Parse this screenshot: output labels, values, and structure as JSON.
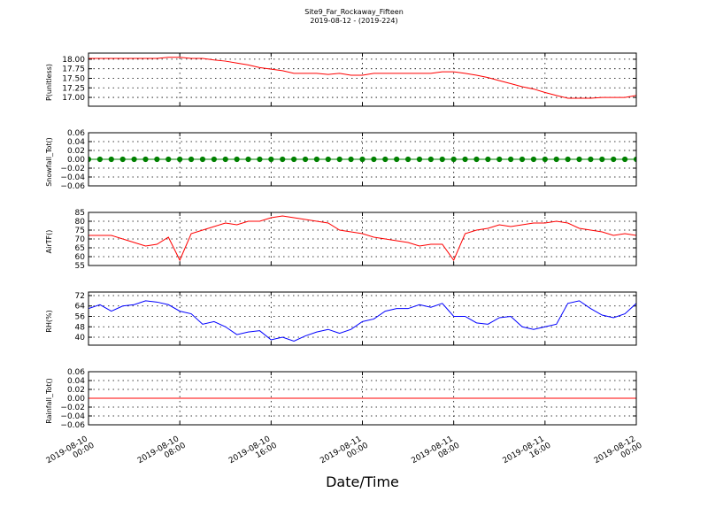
{
  "figure": {
    "title": "Site9_Far_Rockaway_Fifteen",
    "subtitle": "2019-08-12 - (2019-224)"
  },
  "chart_data": [
    {
      "type": "line",
      "ylabel": "P(unitless)",
      "color": "#ff0000",
      "marker": false,
      "grid": true,
      "xtick_labels": false,
      "xlim": [
        "2019-08-10 00:00",
        "2019-08-12 00:00"
      ],
      "xticks": [
        "2019-08-10 00:00",
        "2019-08-10 08:00",
        "2019-08-10 16:00",
        "2019-08-11 00:00",
        "2019-08-11 08:00",
        "2019-08-11 16:00",
        "2019-08-12 00:00"
      ],
      "ylim": [
        16.77,
        18.16
      ],
      "yticks": [
        {
          "value": 17,
          "label": "17.00"
        },
        {
          "value": 17.25,
          "label": "17.25"
        },
        {
          "value": 17.5,
          "label": "17.50"
        },
        {
          "value": 17.75,
          "label": "17.75"
        },
        {
          "value": 18,
          "label": "18.00"
        }
      ],
      "x": [
        "2019-08-10 00:00",
        "2019-08-10 01:00",
        "2019-08-10 02:00",
        "2019-08-10 03:00",
        "2019-08-10 04:00",
        "2019-08-10 05:00",
        "2019-08-10 06:00",
        "2019-08-10 07:00",
        "2019-08-10 08:00",
        "2019-08-10 09:00",
        "2019-08-10 10:00",
        "2019-08-10 11:00",
        "2019-08-10 12:00",
        "2019-08-10 13:00",
        "2019-08-10 14:00",
        "2019-08-10 15:00",
        "2019-08-10 16:00",
        "2019-08-10 17:00",
        "2019-08-10 18:00",
        "2019-08-10 19:00",
        "2019-08-10 20:00",
        "2019-08-10 21:00",
        "2019-08-10 22:00",
        "2019-08-10 23:00",
        "2019-08-11 00:00",
        "2019-08-11 01:00",
        "2019-08-11 02:00",
        "2019-08-11 03:00",
        "2019-08-11 04:00",
        "2019-08-11 05:00",
        "2019-08-11 06:00",
        "2019-08-11 07:00",
        "2019-08-11 08:00",
        "2019-08-11 09:00",
        "2019-08-11 10:00",
        "2019-08-11 11:00",
        "2019-08-11 12:00",
        "2019-08-11 13:00",
        "2019-08-11 14:00",
        "2019-08-11 15:00",
        "2019-08-11 16:00",
        "2019-08-11 17:00",
        "2019-08-11 18:00",
        "2019-08-11 19:00",
        "2019-08-11 20:00",
        "2019-08-11 21:00",
        "2019-08-11 22:00",
        "2019-08-11 23:00",
        "2019-08-12 00:00"
      ],
      "values": [
        18.02,
        18.02,
        18.02,
        18.02,
        18.02,
        18.02,
        18.02,
        18.05,
        18.05,
        18.02,
        18.02,
        17.98,
        17.95,
        17.9,
        17.85,
        17.78,
        17.74,
        17.7,
        17.63,
        17.63,
        17.63,
        17.6,
        17.63,
        17.58,
        17.58,
        17.63,
        17.63,
        17.63,
        17.63,
        17.63,
        17.63,
        17.67,
        17.67,
        17.63,
        17.58,
        17.52,
        17.44,
        17.36,
        17.28,
        17.22,
        17.13,
        17.05,
        16.98,
        16.98,
        16.98,
        17.0,
        17.0,
        17.0,
        17.05
      ]
    },
    {
      "type": "line",
      "ylabel": "Snowfall_Tot()",
      "color": "#008000",
      "marker": true,
      "grid": true,
      "xtick_labels": false,
      "xlim": [
        "2019-08-10 00:00",
        "2019-08-12 00:00"
      ],
      "xticks": [
        "2019-08-10 00:00",
        "2019-08-10 08:00",
        "2019-08-10 16:00",
        "2019-08-11 00:00",
        "2019-08-11 08:00",
        "2019-08-11 16:00",
        "2019-08-12 00:00"
      ],
      "ylim": [
        -0.06,
        0.06
      ],
      "yticks": [
        {
          "value": -0.06,
          "label": "−0.06"
        },
        {
          "value": -0.04,
          "label": "−0.04"
        },
        {
          "value": -0.02,
          "label": "−0.02"
        },
        {
          "value": 0,
          "label": "0.00"
        },
        {
          "value": 0.02,
          "label": "0.02"
        },
        {
          "value": 0.04,
          "label": "0.04"
        },
        {
          "value": 0.06,
          "label": "0.06"
        }
      ],
      "x": [
        "2019-08-10 00:00",
        "2019-08-10 01:00",
        "2019-08-10 02:00",
        "2019-08-10 03:00",
        "2019-08-10 04:00",
        "2019-08-10 05:00",
        "2019-08-10 06:00",
        "2019-08-10 07:00",
        "2019-08-10 08:00",
        "2019-08-10 09:00",
        "2019-08-10 10:00",
        "2019-08-10 11:00",
        "2019-08-10 12:00",
        "2019-08-10 13:00",
        "2019-08-10 14:00",
        "2019-08-10 15:00",
        "2019-08-10 16:00",
        "2019-08-10 17:00",
        "2019-08-10 18:00",
        "2019-08-10 19:00",
        "2019-08-10 20:00",
        "2019-08-10 21:00",
        "2019-08-10 22:00",
        "2019-08-10 23:00",
        "2019-08-11 00:00",
        "2019-08-11 01:00",
        "2019-08-11 02:00",
        "2019-08-11 03:00",
        "2019-08-11 04:00",
        "2019-08-11 05:00",
        "2019-08-11 06:00",
        "2019-08-11 07:00",
        "2019-08-11 08:00",
        "2019-08-11 09:00",
        "2019-08-11 10:00",
        "2019-08-11 11:00",
        "2019-08-11 12:00",
        "2019-08-11 13:00",
        "2019-08-11 14:00",
        "2019-08-11 15:00",
        "2019-08-11 16:00",
        "2019-08-11 17:00",
        "2019-08-11 18:00",
        "2019-08-11 19:00",
        "2019-08-11 20:00",
        "2019-08-11 21:00",
        "2019-08-11 22:00",
        "2019-08-11 23:00",
        "2019-08-12 00:00"
      ],
      "values": [
        0,
        0,
        0,
        0,
        0,
        0,
        0,
        0,
        0,
        0,
        0,
        0,
        0,
        0,
        0,
        0,
        0,
        0,
        0,
        0,
        0,
        0,
        0,
        0,
        0,
        0,
        0,
        0,
        0,
        0,
        0,
        0,
        0,
        0,
        0,
        0,
        0,
        0,
        0,
        0,
        0,
        0,
        0,
        0,
        0,
        0,
        0,
        0,
        0
      ]
    },
    {
      "type": "line",
      "ylabel": "AirTF()",
      "color": "#ff0000",
      "marker": false,
      "grid": true,
      "xtick_labels": false,
      "xlim": [
        "2019-08-10 00:00",
        "2019-08-12 00:00"
      ],
      "xticks": [
        "2019-08-10 00:00",
        "2019-08-10 08:00",
        "2019-08-10 16:00",
        "2019-08-11 00:00",
        "2019-08-11 08:00",
        "2019-08-11 16:00",
        "2019-08-12 00:00"
      ],
      "ylim": [
        55,
        85
      ],
      "yticks": [
        55,
        60,
        65,
        70,
        75,
        80,
        85
      ],
      "x": [
        "2019-08-10 00:00",
        "2019-08-10 01:00",
        "2019-08-10 02:00",
        "2019-08-10 03:00",
        "2019-08-10 04:00",
        "2019-08-10 05:00",
        "2019-08-10 06:00",
        "2019-08-10 07:00",
        "2019-08-10 08:00",
        "2019-08-10 09:00",
        "2019-08-10 10:00",
        "2019-08-10 11:00",
        "2019-08-10 12:00",
        "2019-08-10 13:00",
        "2019-08-10 14:00",
        "2019-08-10 15:00",
        "2019-08-10 16:00",
        "2019-08-10 17:00",
        "2019-08-10 18:00",
        "2019-08-10 19:00",
        "2019-08-10 20:00",
        "2019-08-10 21:00",
        "2019-08-10 22:00",
        "2019-08-10 23:00",
        "2019-08-11 00:00",
        "2019-08-11 01:00",
        "2019-08-11 02:00",
        "2019-08-11 03:00",
        "2019-08-11 04:00",
        "2019-08-11 05:00",
        "2019-08-11 06:00",
        "2019-08-11 07:00",
        "2019-08-11 08:00",
        "2019-08-11 09:00",
        "2019-08-11 10:00",
        "2019-08-11 11:00",
        "2019-08-11 12:00",
        "2019-08-11 13:00",
        "2019-08-11 14:00",
        "2019-08-11 15:00",
        "2019-08-11 16:00",
        "2019-08-11 17:00",
        "2019-08-11 18:00",
        "2019-08-11 19:00",
        "2019-08-11 20:00",
        "2019-08-11 21:00",
        "2019-08-11 22:00",
        "2019-08-11 23:00",
        "2019-08-12 00:00"
      ],
      "values": [
        72,
        72,
        72,
        70,
        68,
        66,
        67,
        71,
        58,
        73,
        75,
        77,
        79,
        78,
        80,
        80,
        82,
        83,
        82,
        81,
        80,
        79,
        75,
        74,
        73,
        71,
        70,
        69,
        68,
        66,
        67,
        67,
        58,
        73,
        75,
        76,
        78,
        77,
        78,
        79,
        79,
        80,
        79,
        76,
        75,
        74,
        72,
        73,
        72
      ]
    },
    {
      "type": "line",
      "ylabel": "RH(%)",
      "color": "#0000ff",
      "marker": false,
      "grid": true,
      "xtick_labels": false,
      "xlim": [
        "2019-08-10 00:00",
        "2019-08-12 00:00"
      ],
      "xticks": [
        "2019-08-10 00:00",
        "2019-08-10 08:00",
        "2019-08-10 16:00",
        "2019-08-11 00:00",
        "2019-08-11 08:00",
        "2019-08-11 16:00",
        "2019-08-12 00:00"
      ],
      "ylim": [
        33.9,
        74.7
      ],
      "yticks": [
        40,
        48,
        56,
        64,
        72
      ],
      "x": [
        "2019-08-10 00:00",
        "2019-08-10 01:00",
        "2019-08-10 02:00",
        "2019-08-10 03:00",
        "2019-08-10 04:00",
        "2019-08-10 05:00",
        "2019-08-10 06:00",
        "2019-08-10 07:00",
        "2019-08-10 08:00",
        "2019-08-10 09:00",
        "2019-08-10 10:00",
        "2019-08-10 11:00",
        "2019-08-10 12:00",
        "2019-08-10 13:00",
        "2019-08-10 14:00",
        "2019-08-10 15:00",
        "2019-08-10 16:00",
        "2019-08-10 17:00",
        "2019-08-10 18:00",
        "2019-08-10 19:00",
        "2019-08-10 20:00",
        "2019-08-10 21:00",
        "2019-08-10 22:00",
        "2019-08-10 23:00",
        "2019-08-11 00:00",
        "2019-08-11 01:00",
        "2019-08-11 02:00",
        "2019-08-11 03:00",
        "2019-08-11 04:00",
        "2019-08-11 05:00",
        "2019-08-11 06:00",
        "2019-08-11 07:00",
        "2019-08-11 08:00",
        "2019-08-11 09:00",
        "2019-08-11 10:00",
        "2019-08-11 11:00",
        "2019-08-11 12:00",
        "2019-08-11 13:00",
        "2019-08-11 14:00",
        "2019-08-11 15:00",
        "2019-08-11 16:00",
        "2019-08-11 17:00",
        "2019-08-11 18:00",
        "2019-08-11 19:00",
        "2019-08-11 20:00",
        "2019-08-11 21:00",
        "2019-08-11 22:00",
        "2019-08-11 23:00",
        "2019-08-12 00:00"
      ],
      "values": [
        62,
        65,
        60,
        64,
        65,
        68,
        67,
        65,
        60,
        58,
        50,
        52,
        48,
        42,
        44,
        45,
        38,
        40,
        37,
        41,
        44,
        46,
        43,
        46,
        52,
        54,
        60,
        62,
        62,
        65,
        63,
        66,
        56,
        56,
        51,
        50,
        55,
        56,
        48,
        46,
        48,
        50,
        66,
        68,
        62,
        57,
        55,
        58,
        66
      ]
    },
    {
      "type": "line",
      "ylabel": "Rainfall_Tot()",
      "xlabel": "Date/Time",
      "color": "#ff0000",
      "marker": false,
      "grid": true,
      "xtick_labels": true,
      "xlim": [
        "2019-08-10 00:00",
        "2019-08-12 00:00"
      ],
      "xticks": [
        "2019-08-10 00:00",
        "2019-08-10 08:00",
        "2019-08-10 16:00",
        "2019-08-11 00:00",
        "2019-08-11 08:00",
        "2019-08-11 16:00",
        "2019-08-12 00:00"
      ],
      "ylim": [
        -0.06,
        0.06
      ],
      "yticks": [
        {
          "value": -0.06,
          "label": "−0.06"
        },
        {
          "value": -0.04,
          "label": "−0.04"
        },
        {
          "value": -0.02,
          "label": "−0.02"
        },
        {
          "value": 0,
          "label": "0.00"
        },
        {
          "value": 0.02,
          "label": "0.02"
        },
        {
          "value": 0.04,
          "label": "0.04"
        },
        {
          "value": 0.06,
          "label": "0.06"
        }
      ],
      "x": [
        "2019-08-10 00:00",
        "2019-08-10 01:00",
        "2019-08-10 02:00",
        "2019-08-10 03:00",
        "2019-08-10 04:00",
        "2019-08-10 05:00",
        "2019-08-10 06:00",
        "2019-08-10 07:00",
        "2019-08-10 08:00",
        "2019-08-10 09:00",
        "2019-08-10 10:00",
        "2019-08-10 11:00",
        "2019-08-10 12:00",
        "2019-08-10 13:00",
        "2019-08-10 14:00",
        "2019-08-10 15:00",
        "2019-08-10 16:00",
        "2019-08-10 17:00",
        "2019-08-10 18:00",
        "2019-08-10 19:00",
        "2019-08-10 20:00",
        "2019-08-10 21:00",
        "2019-08-10 22:00",
        "2019-08-10 23:00",
        "2019-08-11 00:00",
        "2019-08-11 01:00",
        "2019-08-11 02:00",
        "2019-08-11 03:00",
        "2019-08-11 04:00",
        "2019-08-11 05:00",
        "2019-08-11 06:00",
        "2019-08-11 07:00",
        "2019-08-11 08:00",
        "2019-08-11 09:00",
        "2019-08-11 10:00",
        "2019-08-11 11:00",
        "2019-08-11 12:00",
        "2019-08-11 13:00",
        "2019-08-11 14:00",
        "2019-08-11 15:00",
        "2019-08-11 16:00",
        "2019-08-11 17:00",
        "2019-08-11 18:00",
        "2019-08-11 19:00",
        "2019-08-11 20:00",
        "2019-08-11 21:00",
        "2019-08-11 22:00",
        "2019-08-11 23:00",
        "2019-08-12 00:00"
      ],
      "values": [
        0,
        0,
        0,
        0,
        0,
        0,
        0,
        0,
        0,
        0,
        0,
        0,
        0,
        0,
        0,
        0,
        0,
        0,
        0,
        0,
        0,
        0,
        0,
        0,
        0,
        0,
        0,
        0,
        0,
        0,
        0,
        0,
        0,
        0,
        0,
        0,
        0,
        0,
        0,
        0,
        0,
        0,
        0,
        0,
        0,
        0,
        0,
        0,
        0
      ]
    }
  ]
}
